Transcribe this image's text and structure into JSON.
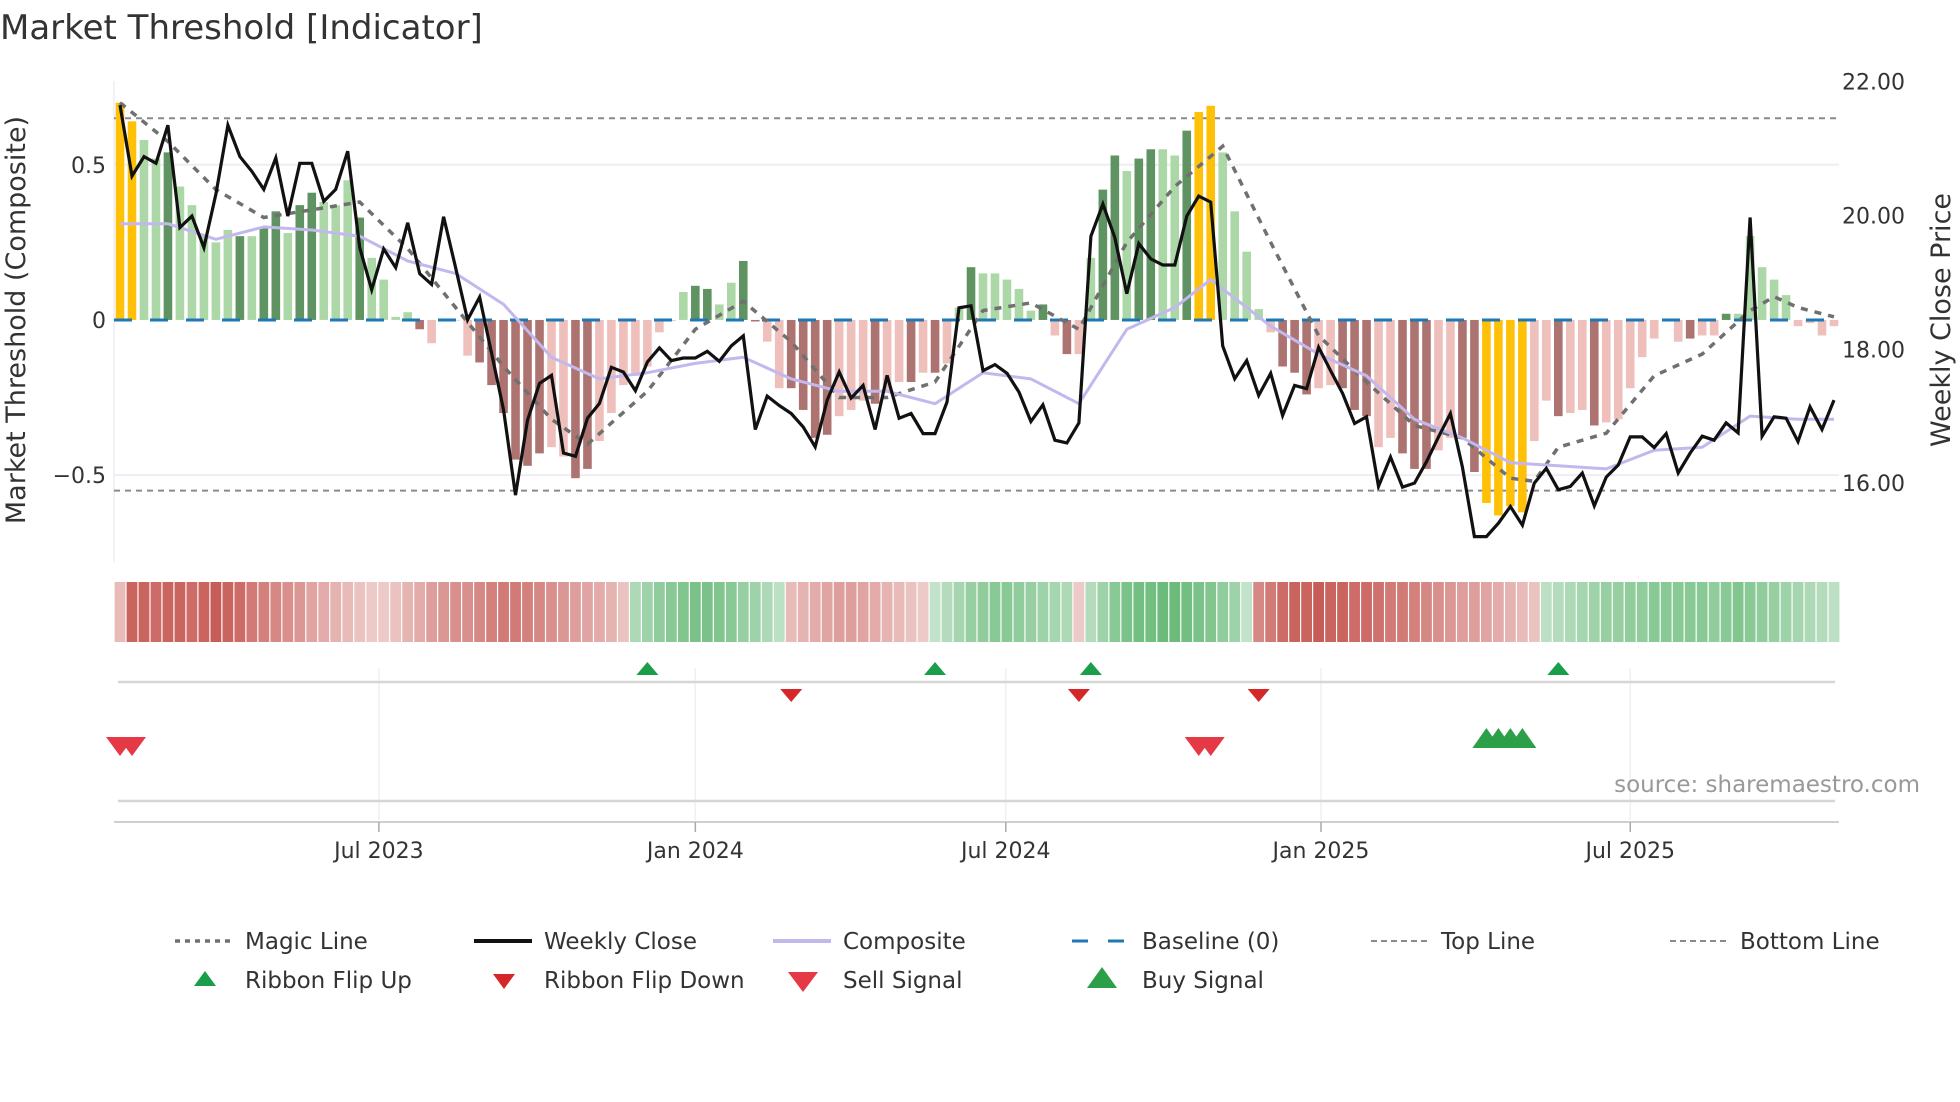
{
  "chart_data": {
    "type": "bar",
    "title": "Market Threshold [Indicator]",
    "ylabel_left": "Market Threshold (Composite)",
    "ylabel_right": "Weekly Close Price",
    "source": "source: sharemaestro.com",
    "x_unit": "week index (weekly, ~Feb 2023 to Oct 2025)",
    "ylim_left": [
      -0.78,
      0.77
    ],
    "ylim_right": [
      14.82,
      22.01
    ],
    "left_ticks": [
      {
        "v": 0.5,
        "label": "0.5"
      },
      {
        "v": 0,
        "label": "0"
      },
      {
        "v": -0.5,
        "label": "−0.5"
      }
    ],
    "right_ticks": [
      {
        "v": 22,
        "label": "22.00"
      },
      {
        "v": 20,
        "label": "20.00"
      },
      {
        "v": 18,
        "label": "18.00"
      },
      {
        "v": 16,
        "label": "16.00"
      }
    ],
    "x_ticks": [
      {
        "w": 21.6,
        "label": "Jul 2023"
      },
      {
        "w": 48.0,
        "label": "Jan 2024"
      },
      {
        "w": 73.9,
        "label": "Jul 2024"
      },
      {
        "w": 100.2,
        "label": "Jan 2025"
      },
      {
        "w": 126.0,
        "label": "Jul 2025"
      }
    ],
    "top_line": 0.65,
    "bottom_line": -0.55,
    "baseline": 0,
    "composite_bars": [
      0.7,
      0.64,
      0.58,
      0.52,
      0.54,
      0.43,
      0.37,
      0.27,
      0.25,
      0.29,
      0.27,
      0.27,
      0.3,
      0.35,
      0.28,
      0.37,
      0.41,
      0.38,
      0.37,
      0.45,
      0.33,
      0.2,
      0.13,
      0.01,
      0.025,
      -0.03,
      -0.075,
      0.003,
      -0.002,
      -0.115,
      -0.137,
      -0.21,
      -0.3,
      -0.45,
      -0.47,
      -0.43,
      -0.41,
      -0.44,
      -0.51,
      -0.48,
      -0.39,
      -0.3,
      -0.21,
      -0.18,
      -0.15,
      -0.04,
      -0.003,
      0.09,
      0.11,
      0.1,
      0.05,
      0.12,
      0.19,
      -0.005,
      -0.07,
      -0.22,
      -0.22,
      -0.29,
      -0.38,
      -0.37,
      -0.31,
      -0.29,
      -0.26,
      -0.27,
      -0.23,
      -0.2,
      -0.2,
      -0.17,
      -0.17,
      -0.14,
      0.04,
      0.17,
      0.15,
      0.15,
      0.13,
      0.1,
      0.03,
      0.05,
      -0.05,
      -0.11,
      -0.11,
      0.2,
      0.42,
      0.53,
      0.48,
      0.52,
      0.55,
      0.55,
      0.53,
      0.61,
      0.67,
      0.69,
      0.54,
      0.35,
      0.22,
      0.035,
      -0.04,
      -0.15,
      -0.17,
      -0.24,
      -0.22,
      -0.21,
      -0.22,
      -0.29,
      -0.31,
      -0.41,
      -0.38,
      -0.43,
      -0.48,
      -0.48,
      -0.42,
      -0.38,
      -0.38,
      -0.49,
      -0.59,
      -0.63,
      -0.6,
      -0.62,
      -0.39,
      -0.26,
      -0.31,
      -0.3,
      -0.29,
      -0.34,
      -0.33,
      -0.32,
      -0.22,
      -0.12,
      -0.06,
      -0.003,
      -0.07,
      -0.06,
      -0.05,
      -0.05,
      0.02,
      0.02,
      0.27,
      0.17,
      0.13,
      0.08,
      -0.02,
      -0.01,
      -0.05,
      -0.02
    ],
    "bar_tones": "yylldllllldlddlddllldlllldldllddddddllddllllllllddllddllddddllldlldldlldllllldldllddlddlldyyllllldddlldddllddd llddyyyylldlldllllllldlldllllllllldl",
    "weekly_close": [
      21.65,
      20.59,
      20.88,
      20.78,
      21.35,
      19.82,
      19.99,
      19.52,
      20.32,
      21.35,
      20.88,
      20.66,
      20.39,
      20.86,
      19.99,
      20.78,
      20.78,
      20.21,
      20.39,
      20.96,
      19.52,
      18.89,
      19.5,
      19.22,
      19.89,
      19.13,
      18.97,
      19.98,
      19.22,
      18.44,
      18.78,
      17.94,
      17.09,
      15.82,
      16.94,
      17.49,
      17.61,
      16.45,
      16.4,
      16.97,
      17.19,
      17.73,
      17.66,
      17.38,
      17.81,
      18.02,
      17.83,
      17.87,
      17.87,
      17.97,
      17.82,
      18.05,
      18.2,
      16.8,
      17.3,
      17.16,
      17.04,
      16.84,
      16.54,
      17.24,
      17.66,
      17.27,
      17.46,
      16.8,
      17.61,
      16.97,
      17.04,
      16.74,
      16.74,
      17.21,
      18.62,
      18.65,
      17.68,
      17.77,
      17.64,
      17.36,
      16.92,
      17.17,
      16.64,
      16.6,
      16.9,
      19.69,
      20.17,
      19.67,
      18.83,
      19.58,
      19.35,
      19.26,
      19.26,
      19.99,
      20.29,
      20.2,
      18.05,
      17.56,
      17.83,
      17.31,
      17.64,
      17.01,
      17.46,
      17.41,
      18.03,
      17.68,
      17.34,
      16.89,
      16.99,
      15.95,
      16.39,
      15.94,
      16.0,
      16.32,
      16.69,
      17.04,
      16.24,
      15.2,
      15.2,
      15.4,
      15.65,
      15.37,
      16.0,
      16.22,
      15.9,
      15.95,
      16.15,
      15.66,
      16.09,
      16.27,
      16.69,
      16.69,
      16.53,
      16.74,
      16.15,
      16.45,
      16.7,
      16.64,
      16.9,
      16.75,
      19.97,
      16.7,
      16.99,
      16.97,
      16.62,
      17.14,
      16.8,
      17.24
    ],
    "composite_line": {
      "w": [
        0,
        4,
        8,
        12,
        16,
        20,
        24,
        28,
        32,
        36,
        40,
        44,
        48,
        52,
        56,
        60,
        64,
        68,
        72,
        76,
        80,
        84,
        88,
        91,
        96,
        100,
        104,
        108,
        112,
        116,
        120,
        124,
        128,
        132,
        136,
        140,
        143
      ],
      "v": [
        0.31,
        0.31,
        0.26,
        0.3,
        0.29,
        0.27,
        0.19,
        0.15,
        0.05,
        -0.12,
        -0.19,
        -0.17,
        -0.14,
        -0.12,
        -0.19,
        -0.23,
        -0.23,
        -0.27,
        -0.17,
        -0.19,
        -0.27,
        -0.03,
        0.04,
        0.13,
        -0.02,
        -0.11,
        -0.18,
        -0.32,
        -0.38,
        -0.46,
        -0.47,
        -0.48,
        -0.42,
        -0.41,
        -0.31,
        -0.32,
        -0.32
      ]
    },
    "magic_line": {
      "w": [
        0,
        4,
        8,
        12,
        16,
        20,
        24,
        28,
        32,
        36,
        39,
        44,
        48,
        52,
        56,
        60,
        64,
        68,
        72,
        76,
        80,
        84,
        88,
        92,
        96,
        100,
        104,
        108,
        112,
        116,
        118,
        120,
        124,
        128,
        132,
        136,
        138,
        140,
        143
      ],
      "v": [
        0.7,
        0.575,
        0.42,
        0.33,
        0.355,
        0.38,
        0.23,
        0.04,
        -0.15,
        -0.32,
        -0.4,
        -0.23,
        -0.03,
        0.06,
        -0.07,
        -0.25,
        -0.25,
        -0.2,
        0.03,
        0.055,
        -0.03,
        0.25,
        0.43,
        0.56,
        0.25,
        -0.05,
        -0.2,
        -0.34,
        -0.38,
        -0.51,
        -0.52,
        -0.41,
        -0.365,
        -0.18,
        -0.11,
        0.03,
        0.075,
        0.04,
        0.01
      ]
    },
    "ribbon": [
      -0.25,
      -0.85,
      -0.85,
      -0.8,
      -0.85,
      -0.85,
      -0.8,
      -0.85,
      -0.9,
      -0.85,
      -0.8,
      -0.7,
      -0.65,
      -0.6,
      -0.55,
      -0.5,
      -0.4,
      -0.35,
      -0.3,
      -0.25,
      -0.2,
      -0.15,
      -0.15,
      -0.2,
      -0.3,
      -0.35,
      -0.45,
      -0.5,
      -0.55,
      -0.55,
      -0.6,
      -0.65,
      -0.7,
      -0.7,
      -0.65,
      -0.6,
      -0.55,
      -0.5,
      -0.45,
      -0.4,
      -0.35,
      -0.3,
      -0.2,
      0.35,
      0.45,
      0.55,
      0.6,
      0.65,
      0.7,
      0.7,
      0.65,
      0.6,
      0.5,
      0.45,
      0.35,
      0.25,
      -0.25,
      -0.3,
      -0.35,
      -0.4,
      -0.45,
      -0.45,
      -0.4,
      -0.35,
      -0.3,
      -0.25,
      -0.2,
      -0.15,
      0.2,
      0.3,
      0.4,
      0.5,
      0.55,
      0.6,
      0.6,
      0.55,
      0.5,
      0.45,
      0.4,
      0.35,
      -0.15,
      0.3,
      0.45,
      0.6,
      0.7,
      0.75,
      0.75,
      0.8,
      0.8,
      0.75,
      0.7,
      0.65,
      0.55,
      0.45,
      0.2,
      -0.6,
      -0.7,
      -0.8,
      -0.85,
      -0.85,
      -0.9,
      -0.85,
      -0.85,
      -0.8,
      -0.8,
      -0.75,
      -0.7,
      -0.7,
      -0.65,
      -0.6,
      -0.55,
      -0.5,
      -0.45,
      -0.45,
      -0.4,
      -0.35,
      -0.3,
      -0.25,
      -0.2,
      0.25,
      0.3,
      0.35,
      0.4,
      0.45,
      0.5,
      0.5,
      0.55,
      0.55,
      0.6,
      0.6,
      0.6,
      0.6,
      0.6,
      0.55,
      0.6,
      0.65,
      0.6,
      0.55,
      0.5,
      0.45,
      0.4,
      0.35,
      0.3,
      0.25
    ],
    "ribbon_flip_up": [
      44,
      68,
      81,
      120
    ],
    "ribbon_flip_down": [
      56,
      80,
      95
    ],
    "sell_signals": [
      0,
      1,
      90,
      91
    ],
    "buy_signals": [
      114,
      115,
      116,
      117
    ],
    "legend": [
      {
        "key": "magic",
        "label": "Magic Line"
      },
      {
        "key": "close",
        "label": "Weekly Close"
      },
      {
        "key": "composite",
        "label": "Composite"
      },
      {
        "key": "baseline",
        "label": "Baseline (0)"
      },
      {
        "key": "top",
        "label": "Top Line"
      },
      {
        "key": "bottom",
        "label": "Bottom Line"
      },
      {
        "key": "flipup",
        "label": "Ribbon Flip Up"
      },
      {
        "key": "flipdown",
        "label": "Ribbon Flip Down"
      },
      {
        "key": "sell",
        "label": "Sell Signal"
      },
      {
        "key": "buy",
        "label": "Buy Signal"
      }
    ],
    "colors": {
      "extreme": "#FFC107",
      "pos_dark": "#5f9462",
      "pos_light": "#acd8a7",
      "neg_dark": "#ad7370",
      "neg_light": "#eebfbb",
      "close": "#111111",
      "composite": "#c3b8ee",
      "magic": "#707070",
      "baseline": "#1f77b4",
      "threshold": "#8a8a8a",
      "ribbon_pos": "#4fae62",
      "ribbon_neg": "#c24e49",
      "flip_up": "#1a9e4a",
      "flip_down": "#d62728",
      "sell": "#e63946",
      "buy": "#2ca048"
    }
  }
}
